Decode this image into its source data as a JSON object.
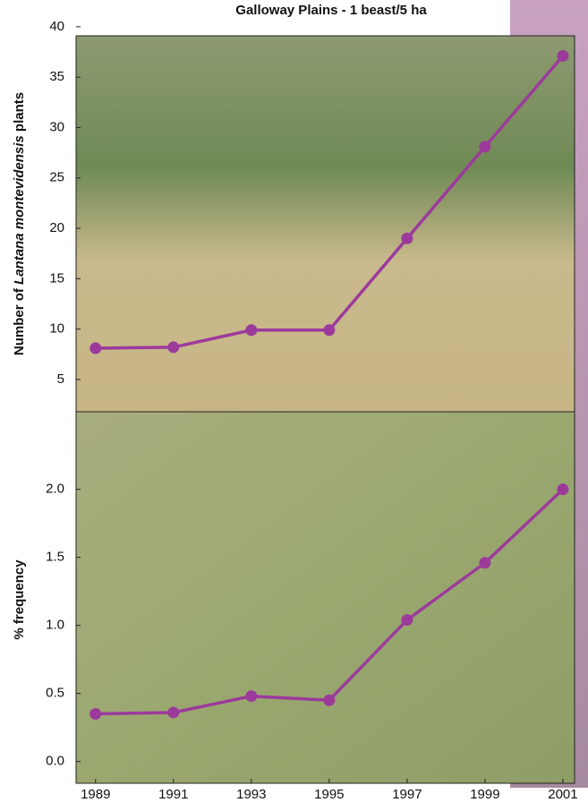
{
  "chart_data": [
    {
      "type": "line",
      "title": "Galloway Plains - 1 beast/5 ha",
      "ylabel": {
        "before": "Number of",
        "italic": "Lantana montevidensis",
        "after": "plants"
      },
      "x": [
        1989,
        1991,
        1993,
        1995,
        1997,
        1999,
        2001
      ],
      "series": [
        {
          "color": "#9c3a9c",
          "values": [
            8.1,
            8.2,
            9.9,
            9.9,
            19,
            28.1,
            37.1
          ]
        }
      ],
      "xlim": [
        1988.5,
        2001.3
      ],
      "ylim": [
        1.8,
        39.1
      ],
      "yticks": [
        5,
        10,
        15,
        20,
        25,
        30,
        35,
        40
      ]
    },
    {
      "type": "line",
      "ylabel": "% frequency",
      "x": [
        1989,
        1991,
        1993,
        1995,
        1997,
        1999,
        2001
      ],
      "series": [
        {
          "color": "#9c3a9c",
          "values": [
            0.35,
            0.36,
            0.48,
            0.45,
            1.04,
            1.46,
            2.0
          ]
        }
      ],
      "xlim": [
        1988.5,
        2001.3
      ],
      "ylim": [
        -0.16,
        2.57
      ],
      "xticks": [
        1989,
        1991,
        1993,
        1995,
        1997,
        1999,
        2001
      ],
      "yticks": [
        {
          "value": 0,
          "label": "0.0"
        },
        {
          "value": 0.5,
          "label": "0.5"
        },
        {
          "value": 1,
          "label": "1.0"
        },
        {
          "value": 1.5,
          "label": "1.5"
        },
        {
          "value": 2,
          "label": "2.0"
        }
      ]
    }
  ]
}
